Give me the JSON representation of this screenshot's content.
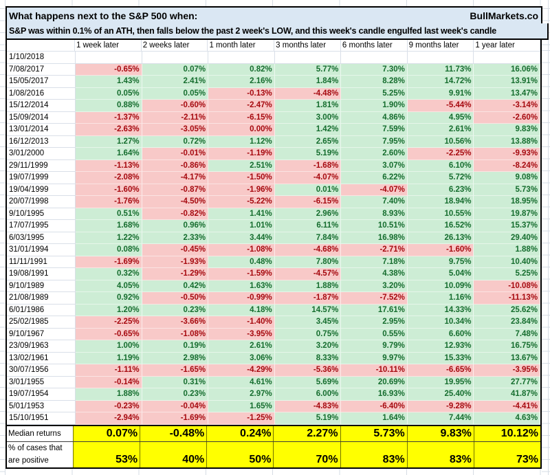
{
  "title": {
    "line1": "What happens next to the S&P 500 when:",
    "brand": "BullMarkets.co",
    "line2": "S&P was within 0.1% of an ATH, then falls below the past 2 week's LOW, and this week's candle engulfed last week's candle"
  },
  "columns": [
    "1 week later",
    "2 weeks later",
    "1 month later",
    "3 months later",
    "6 months later",
    "9 months later",
    "1 year later"
  ],
  "rows": [
    {
      "date": "1/10/2018",
      "values": [
        "",
        "",
        "",
        "",
        "",
        "",
        ""
      ]
    },
    {
      "date": "7/08/2017",
      "values": [
        "-0.65%",
        "0.07%",
        "0.82%",
        "5.77%",
        "7.30%",
        "11.73%",
        "16.06%"
      ]
    },
    {
      "date": "15/05/2017",
      "values": [
        "1.43%",
        "2.41%",
        "2.16%",
        "1.84%",
        "8.28%",
        "14.72%",
        "13.91%"
      ]
    },
    {
      "date": "1/08/2016",
      "values": [
        "0.05%",
        "0.05%",
        "-0.13%",
        "-4.48%",
        "5.25%",
        "9.91%",
        "13.47%"
      ]
    },
    {
      "date": "15/12/2014",
      "values": [
        "0.88%",
        "-0.60%",
        "-2.47%",
        "1.81%",
        "1.90%",
        "-5.44%",
        "-3.14%"
      ]
    },
    {
      "date": "15/09/2014",
      "values": [
        "-1.37%",
        "-2.11%",
        "-6.15%",
        "3.00%",
        "4.86%",
        "4.95%",
        "-2.60%"
      ]
    },
    {
      "date": "13/01/2014",
      "values": [
        "-2.63%",
        "-3.05%",
        "0.00%",
        "1.42%",
        "7.59%",
        "2.61%",
        "9.83%"
      ]
    },
    {
      "date": "16/12/2013",
      "values": [
        "1.27%",
        "0.72%",
        "1.12%",
        "2.65%",
        "7.95%",
        "10.56%",
        "13.88%"
      ]
    },
    {
      "date": "3/01/2000",
      "values": [
        "1.64%",
        "-0.01%",
        "-1.19%",
        "5.19%",
        "2.60%",
        "-2.25%",
        "-9.93%"
      ]
    },
    {
      "date": "29/11/1999",
      "values": [
        "-1.13%",
        "-0.86%",
        "2.51%",
        "-1.68%",
        "3.07%",
        "6.10%",
        "-8.24%"
      ]
    },
    {
      "date": "19/07/1999",
      "values": [
        "-2.08%",
        "-4.17%",
        "-1.50%",
        "-4.07%",
        "6.22%",
        "5.72%",
        "9.08%"
      ]
    },
    {
      "date": "19/04/1999",
      "values": [
        "-1.60%",
        "-0.87%",
        "-1.96%",
        "0.01%",
        "-4.07%",
        "6.23%",
        "5.73%"
      ]
    },
    {
      "date": "20/07/1998",
      "values": [
        "-1.76%",
        "-4.50%",
        "-5.22%",
        "-6.15%",
        "7.40%",
        "18.94%",
        "18.95%"
      ]
    },
    {
      "date": "9/10/1995",
      "values": [
        "0.51%",
        "-0.82%",
        "1.41%",
        "2.96%",
        "8.93%",
        "10.55%",
        "19.87%"
      ]
    },
    {
      "date": "17/07/1995",
      "values": [
        "1.68%",
        "0.96%",
        "1.01%",
        "6.11%",
        "10.51%",
        "16.52%",
        "15.37%"
      ]
    },
    {
      "date": "6/03/1995",
      "values": [
        "1.22%",
        "2.33%",
        "3.44%",
        "7.84%",
        "16.98%",
        "26.13%",
        "29.40%"
      ]
    },
    {
      "date": "31/01/1994",
      "values": [
        "0.08%",
        "-0.45%",
        "-1.08%",
        "-4.68%",
        "-2.71%",
        "-1.60%",
        "1.88%"
      ]
    },
    {
      "date": "11/11/1991",
      "values": [
        "-1.69%",
        "-1.93%",
        "0.48%",
        "7.80%",
        "7.18%",
        "9.75%",
        "10.40%"
      ]
    },
    {
      "date": "19/08/1991",
      "values": [
        "0.32%",
        "-1.29%",
        "-1.59%",
        "-4.57%",
        "4.38%",
        "5.04%",
        "5.25%"
      ]
    },
    {
      "date": "9/10/1989",
      "values": [
        "4.05%",
        "0.42%",
        "1.63%",
        "1.88%",
        "3.20%",
        "10.09%",
        "-10.08%"
      ]
    },
    {
      "date": "21/08/1989",
      "values": [
        "0.92%",
        "-0.50%",
        "-0.99%",
        "-1.87%",
        "-7.52%",
        "1.16%",
        "-11.13%"
      ]
    },
    {
      "date": "6/01/1986",
      "values": [
        "1.20%",
        "0.23%",
        "4.18%",
        "14.57%",
        "17.61%",
        "14.33%",
        "25.62%"
      ]
    },
    {
      "date": "25/02/1985",
      "values": [
        "-2.25%",
        "-3.66%",
        "-1.40%",
        "3.45%",
        "2.95%",
        "10.34%",
        "23.84%"
      ]
    },
    {
      "date": "9/10/1967",
      "values": [
        "-0.65%",
        "-1.08%",
        "-3.95%",
        "0.75%",
        "0.55%",
        "6.60%",
        "7.48%"
      ]
    },
    {
      "date": "23/09/1963",
      "values": [
        "1.00%",
        "0.19%",
        "2.61%",
        "3.20%",
        "9.79%",
        "12.93%",
        "16.75%"
      ]
    },
    {
      "date": "13/02/1961",
      "values": [
        "1.19%",
        "2.98%",
        "3.06%",
        "8.33%",
        "9.97%",
        "15.33%",
        "13.67%"
      ]
    },
    {
      "date": "30/07/1956",
      "values": [
        "-1.11%",
        "-1.65%",
        "-4.29%",
        "-5.36%",
        "-10.11%",
        "-6.65%",
        "-3.95%"
      ]
    },
    {
      "date": "3/01/1955",
      "values": [
        "-0.14%",
        "0.31%",
        "4.61%",
        "5.69%",
        "20.69%",
        "19.95%",
        "27.77%"
      ]
    },
    {
      "date": "19/07/1954",
      "values": [
        "1.88%",
        "0.23%",
        "2.97%",
        "6.00%",
        "16.93%",
        "25.40%",
        "41.87%"
      ]
    },
    {
      "date": "5/01/1953",
      "values": [
        "-0.23%",
        "-0.04%",
        "1.65%",
        "-4.83%",
        "-6.40%",
        "-9.28%",
        "-4.41%"
      ]
    },
    {
      "date": "15/10/1951",
      "values": [
        "-2.94%",
        "-1.69%",
        "-1.25%",
        "5.19%",
        "1.64%",
        "7.44%",
        "4.63%"
      ]
    }
  ],
  "summary": {
    "median_label": "Median returns",
    "median_values": [
      "0.07%",
      "-0.48%",
      "0.24%",
      "2.27%",
      "5.73%",
      "9.83%",
      "10.12%"
    ],
    "positive_label_line1": "% of cases that",
    "positive_label_line2": "are positive",
    "positive_values": [
      "53%",
      "40%",
      "50%",
      "70%",
      "83%",
      "83%",
      "73%"
    ]
  },
  "colors": {
    "header_bg": "#dae7f3",
    "positive_bg": "#cdedd5",
    "positive_text": "#156d2e",
    "negative_bg": "#f8c9c8",
    "negative_text": "#a6090f",
    "summary_highlight": "#ffff00",
    "gridline": "#d6dce4"
  }
}
